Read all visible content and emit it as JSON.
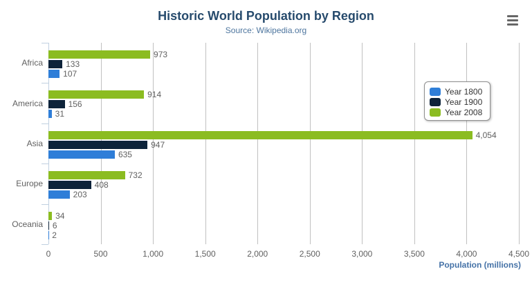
{
  "chart": {
    "title": "Historic World Population by Region",
    "subtitle": "Source: Wikipedia.org"
  },
  "chart_data": {
    "type": "bar",
    "orientation": "horizontal",
    "title": "Historic World Population by Region",
    "subtitle": "Source: Wikipedia.org",
    "categories": [
      "Africa",
      "America",
      "Asia",
      "Europe",
      "Oceania"
    ],
    "series": [
      {
        "name": "Year 1800",
        "color": "#2f7ed8",
        "values": [
          107,
          31,
          635,
          203,
          2
        ]
      },
      {
        "name": "Year 1900",
        "color": "#0d233a",
        "values": [
          133,
          156,
          947,
          408,
          6
        ]
      },
      {
        "name": "Year 2008",
        "color": "#8bbc21",
        "values": [
          973,
          914,
          4054,
          732,
          34
        ]
      }
    ],
    "row_order_top_to_bottom": [
      "Year 2008",
      "Year 1900",
      "Year 1800"
    ],
    "data_labels": true,
    "data_label_format": "thousands-comma",
    "xlabel": "Population (millions)",
    "xlim": [
      0,
      4500
    ],
    "xticks": [
      0,
      500,
      1000,
      1500,
      2000,
      2500,
      3000,
      3500,
      4000,
      4500
    ],
    "xtick_labels": [
      "0",
      "500",
      "1,000",
      "1,500",
      "2,000",
      "2,500",
      "3,000",
      "3,500",
      "4,000",
      "4,500"
    ],
    "grid": true,
    "legend_position": "right-center",
    "legend_items": [
      "Year 1800",
      "Year 1900",
      "Year 2008"
    ]
  },
  "colors": {
    "background": "#ffffff",
    "title": "#274b6d",
    "subtitle": "#4d759e",
    "axis_line": "#c0d0e0",
    "gridline": "#c0c0c0",
    "tick_label": "#606060",
    "category_label": "#606060",
    "data_label": "#606060",
    "axis_title": "#4572a7",
    "legend_border": "#909090",
    "legend_text": "#333333",
    "menu_icon": "#666666"
  },
  "menu": {
    "icon": "hamburger-icon"
  }
}
